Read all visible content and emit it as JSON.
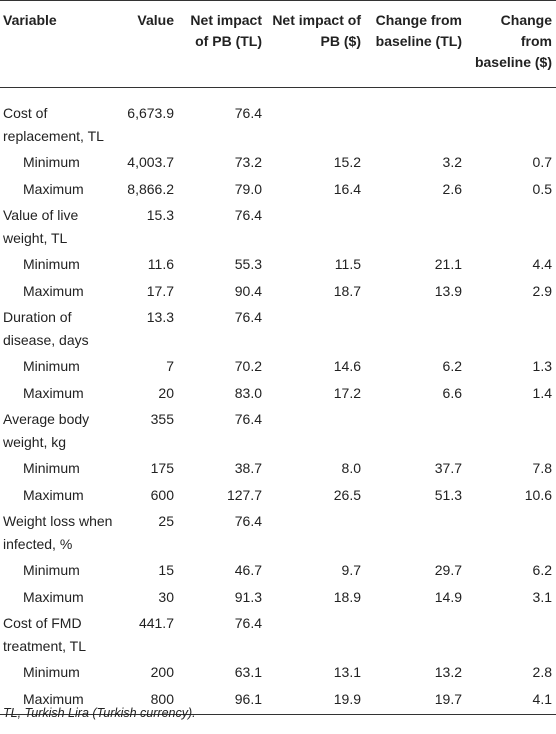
{
  "header": {
    "variable": "Variable",
    "value": "Value",
    "net_impact_tl": "Net impact of PB (TL)",
    "net_impact_usd": "Net impact of PB ($)",
    "change_tl": "Change from baseline (TL)",
    "change_usd": "Change from baseline ($)"
  },
  "rows": [
    {
      "label": "Cost of replacement, TL",
      "value": "6,673.9",
      "net_tl": "76.4",
      "min": {
        "label": "Minimum",
        "value": "4,003.7",
        "net_tl": "73.2",
        "net_usd": "15.2",
        "chg_tl": "3.2",
        "chg_usd": "0.7"
      },
      "max": {
        "label": "Maximum",
        "value": "8,866.2",
        "net_tl": "79.0",
        "net_usd": "16.4",
        "chg_tl": "2.6",
        "chg_usd": "0.5"
      }
    },
    {
      "label": "Value of live weight, TL",
      "value": "15.3",
      "net_tl": "76.4",
      "min": {
        "label": "Minimum",
        "value": "11.6",
        "net_tl": "55.3",
        "net_usd": "11.5",
        "chg_tl": "21.1",
        "chg_usd": "4.4"
      },
      "max": {
        "label": "Maximum",
        "value": "17.7",
        "net_tl": "90.4",
        "net_usd": "18.7",
        "chg_tl": "13.9",
        "chg_usd": "2.9"
      }
    },
    {
      "label": "Duration of disease, days",
      "value": "13.3",
      "net_tl": "76.4",
      "min": {
        "label": "Minimum",
        "value": "7",
        "net_tl": "70.2",
        "net_usd": "14.6",
        "chg_tl": "6.2",
        "chg_usd": "1.3"
      },
      "max": {
        "label": "Maximum",
        "value": "20",
        "net_tl": "83.0",
        "net_usd": "17.2",
        "chg_tl": "6.6",
        "chg_usd": "1.4"
      }
    },
    {
      "label": "Average body weight, kg",
      "value": "355",
      "net_tl": "76.4",
      "min": {
        "label": "Minimum",
        "value": "175",
        "net_tl": "38.7",
        "net_usd": "8.0",
        "chg_tl": "37.7",
        "chg_usd": "7.8"
      },
      "max": {
        "label": "Maximum",
        "value": "600",
        "net_tl": "127.7",
        "net_usd": "26.5",
        "chg_tl": "51.3",
        "chg_usd": "10.6"
      }
    },
    {
      "label": "Weight loss when infected, %",
      "value": "25",
      "net_tl": "76.4",
      "min": {
        "label": "Minimum",
        "value": "15",
        "net_tl": "46.7",
        "net_usd": "9.7",
        "chg_tl": "29.7",
        "chg_usd": "6.2"
      },
      "max": {
        "label": "Maximum",
        "value": "30",
        "net_tl": "91.3",
        "net_usd": "18.9",
        "chg_tl": "14.9",
        "chg_usd": "3.1"
      }
    },
    {
      "label": "Cost of FMD treatment, TL",
      "value": "441.7",
      "net_tl": "76.4",
      "min": {
        "label": "Minimum",
        "value": "200",
        "net_tl": "63.1",
        "net_usd": "13.1",
        "chg_tl": "13.2",
        "chg_usd": "2.8"
      },
      "max": {
        "label": "Maximum",
        "value": "800",
        "net_tl": "96.1",
        "net_usd": "19.9",
        "chg_tl": "19.7",
        "chg_usd": "4.1"
      }
    }
  ],
  "footnote": "TL, Turkish Lira (Turkish currency)."
}
